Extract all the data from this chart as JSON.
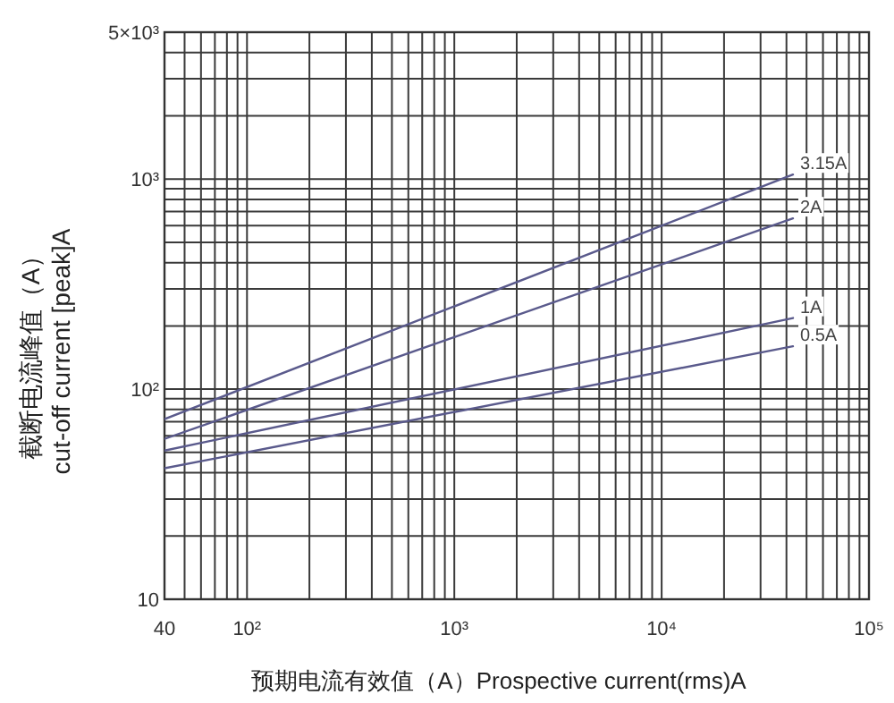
{
  "chart_data": {
    "type": "line",
    "xlabel": "预期电流有效值（A）Prospective current(rms)A",
    "ylabel": "截断电流峰值（A）\ncut-off current [peak]A",
    "log": "xy",
    "grid": true,
    "legend": false,
    "marker": "none",
    "line_style": "solid",
    "xlim": [
      40,
      100000
    ],
    "xticks": [
      40,
      {
        "value": 100,
        "label": "10²"
      },
      {
        "value": 1000,
        "label": "10³"
      },
      {
        "value": 10000,
        "label": "10⁴"
      },
      {
        "value": 100000,
        "label": "10⁵"
      }
    ],
    "ylim": [
      10,
      5000
    ],
    "yticks": [
      10,
      {
        "value": 100,
        "label": "10²"
      },
      {
        "value": 1000,
        "label": "10³"
      },
      {
        "value": 5000,
        "label": "5×10³"
      }
    ],
    "x": [
      40,
      43000
    ],
    "series": [
      {
        "name": "3.15A",
        "color": "#5a5a8c",
        "values": [
          72,
          1050
        ]
      },
      {
        "name": "2A",
        "color": "#5a5a8c",
        "values": [
          58,
          650
        ]
      },
      {
        "name": "1A",
        "color": "#5a5a8c",
        "values": [
          51,
          218
        ]
      },
      {
        "name": "0.5A",
        "color": "#5a5a8c",
        "values": [
          42,
          160
        ]
      }
    ]
  }
}
